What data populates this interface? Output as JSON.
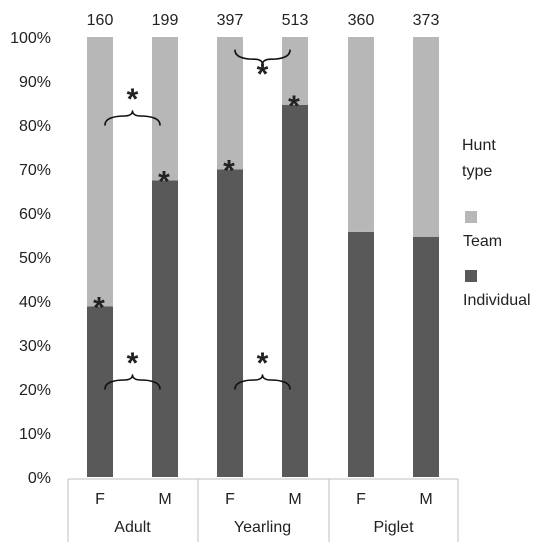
{
  "chart_data": {
    "type": "bar",
    "stacked": true,
    "percent_scale": true,
    "groups": [
      "Adult",
      "Yearling",
      "Piglet"
    ],
    "categories": [
      "F",
      "M",
      "F",
      "M",
      "F",
      "M"
    ],
    "sample_sizes": [
      "160",
      "199",
      "397",
      "513",
      "360",
      "373"
    ],
    "series": [
      {
        "name": "Individual",
        "color": "#595959",
        "values": [
          38.8,
          67.4,
          69.9,
          84.6,
          55.7,
          54.6
        ]
      },
      {
        "name": "Team",
        "color": "#b7b7b7",
        "values": [
          61.2,
          32.6,
          30.1,
          15.4,
          44.3,
          45.4
        ]
      }
    ],
    "ylim": [
      0,
      100
    ],
    "yticks": [
      "0%",
      "10%",
      "20%",
      "30%",
      "40%",
      "50%",
      "60%",
      "70%",
      "80%",
      "90%",
      "100%"
    ],
    "legend": {
      "title_lines": [
        "Hunt",
        "type"
      ],
      "position": "right"
    },
    "annotations": {
      "symbol": "*",
      "bar_stars": [
        0,
        1,
        2,
        3
      ],
      "comparison_braces": [
        {
          "bars": [
            0,
            1
          ],
          "level": 20,
          "orientation": "up"
        },
        {
          "bars": [
            2,
            3
          ],
          "level": 20,
          "orientation": "up"
        },
        {
          "bars": [
            0,
            1
          ],
          "level": 80,
          "orientation": "up"
        },
        {
          "bars": [
            2,
            3
          ],
          "level": 97,
          "orientation": "down"
        }
      ]
    },
    "grid": false
  }
}
